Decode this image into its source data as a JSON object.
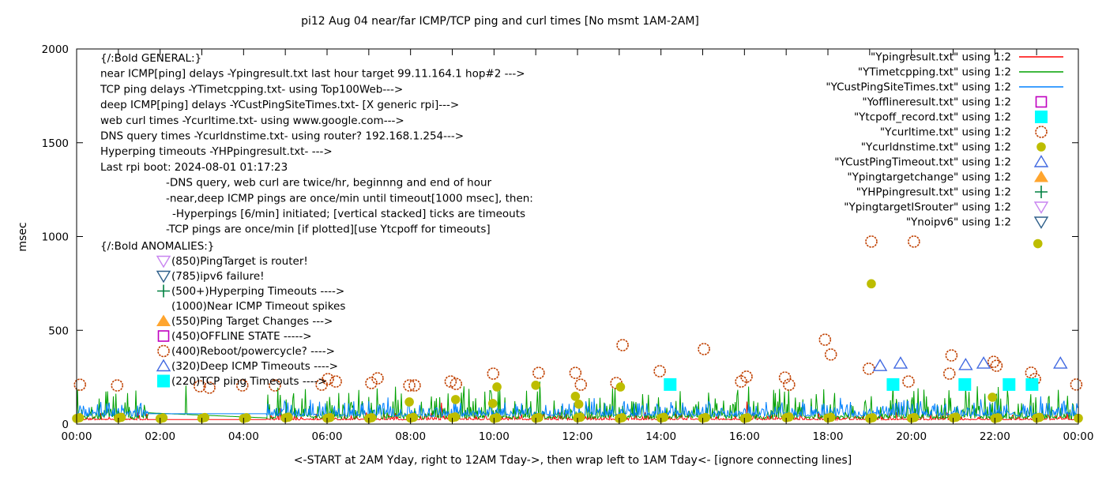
{
  "title": "pi12 Aug 04  near/far ICMP/TCP ping and curl times [No msmt 1AM-2AM]",
  "axes": {
    "ylabel": "msec",
    "y_ticks": [
      0,
      500,
      1000,
      1500,
      2000
    ],
    "y_range": [
      0,
      2000
    ],
    "x_tick_labels": [
      "00:00",
      "02:00",
      "04:00",
      "06:00",
      "08:00",
      "10:00",
      "12:00",
      "14:00",
      "16:00",
      "18:00",
      "20:00",
      "22:00",
      "00:00"
    ],
    "x_range_hours": [
      0,
      24
    ],
    "xlabel": "<-START at 2AM Yday, right to 12AM Tday->, then wrap left to 1AM Tday<- [ignore connecting lines]"
  },
  "legend": [
    {
      "label": "\"Ypingresult.txt\" using 1:2",
      "marker": "line",
      "color": "#ff0000"
    },
    {
      "label": "\"YTimetcpping.txt\" using 1:2",
      "marker": "line",
      "color": "#00a000"
    },
    {
      "label": "\"YCustPingSiteTimes.txt\" using 1:2",
      "marker": "line",
      "color": "#0080ff"
    },
    {
      "label": "\"Yofflineresult.txt\" using 1:2",
      "marker": "square-open",
      "color": "#c000c0"
    },
    {
      "label": "\"Ytcpoff_record.txt\" using 1:2",
      "marker": "square-filled",
      "color": "#00ffff"
    },
    {
      "label": "\"Ycurltime.txt\" using 1:2",
      "marker": "circle-open",
      "color": "#c04000"
    },
    {
      "label": "\"Ycurldnstime.txt\" using 1:2",
      "marker": "circle-filled",
      "color": "#bdbd00"
    },
    {
      "label": "\"YCustPingTimeout.txt\" using 1:2",
      "marker": "triangle-up-open",
      "color": "#4169e1"
    },
    {
      "label": "\"Ypingtargetchange\" using 1:2",
      "marker": "triangle-up-filled",
      "color": "#ffa52e"
    },
    {
      "label": "\"YHPpingresult.txt\" using 1:2",
      "marker": "plus",
      "color": "#008040"
    },
    {
      "label": "\"YpingtargetISrouter\" using 1:2",
      "marker": "triangle-down-open",
      "color": "#c884f0"
    },
    {
      "label": "\"Ynoipv6\" using 1:2",
      "marker": "triangle-down-open",
      "color": "#2e5f8a"
    }
  ],
  "notes": {
    "general": [
      {
        "indent": 0,
        "text": "{/:Bold GENERAL:}"
      },
      {
        "indent": 0,
        "text": "near ICMP[ping] delays -Ypingresult.txt last hour target 99.11.164.1 hop#2 --->"
      },
      {
        "indent": 0,
        "text": "TCP ping delays -YTimetcpping.txt- using Top100Web--->"
      },
      {
        "indent": 0,
        "text": "deep ICMP[ping] delays -YCustPingSiteTimes.txt- [X generic rpi]--->"
      },
      {
        "indent": 0,
        "text": "web curl times -Ycurltime.txt- using www.google.com--->"
      },
      {
        "indent": 0,
        "text": "DNS query times -Ycurldnstime.txt- using router? 192.168.1.254--->"
      },
      {
        "indent": 0,
        "text": "Hyperping timeouts -YHPpingresult.txt- --->"
      },
      {
        "indent": 0,
        "text": "Last rpi boot: 2024-08-01 01:17:23"
      },
      {
        "indent": 1,
        "text": "-DNS query, web curl are twice/hr, beginnng and end of hour"
      },
      {
        "indent": 1,
        "text": "-near,deep ICMP pings are once/min until timeout[1000 msec], then:"
      },
      {
        "indent": 2,
        "text": "-Hyperpings [6/min] initiated; [vertical stacked] ticks are timeouts"
      },
      {
        "indent": 1,
        "text": "-TCP pings are once/min [if plotted][use Ytcpoff for timeouts]"
      }
    ],
    "anomalies_header": "{/:Bold ANOMALIES:}",
    "anomalies": [
      {
        "marker": "triangle-down-open",
        "color": "#c884f0",
        "text": "(850)PingTarget is router!"
      },
      {
        "marker": "triangle-down-open",
        "color": "#2e5f8a",
        "text": "(785)ipv6 failure!"
      },
      {
        "marker": "plus",
        "color": "#008040",
        "text": "(500+)Hyperping Timeouts ---->"
      },
      {
        "marker": "none",
        "color": "#000000",
        "text": "(1000)Near ICMP Timeout spikes"
      },
      {
        "marker": "triangle-up-filled",
        "color": "#ffa52e",
        "text": "(550)Ping Target Changes --->"
      },
      {
        "marker": "square-open",
        "color": "#c000c0",
        "text": "(450)OFFLINE STATE ----->"
      },
      {
        "marker": "circle-open",
        "color": "#c04000",
        "text": "(400)Reboot/powercycle? ---->"
      },
      {
        "marker": "triangle-up-open",
        "color": "#4169e1",
        "text": "(320)Deep ICMP Timeouts ---->"
      },
      {
        "marker": "square-filled",
        "color": "#00ffff",
        "text": "(220)TCP ping Timeouts ---->"
      }
    ]
  },
  "chart_data": {
    "type": "line+scatter",
    "x_unit": "hours (00:00-24:00)",
    "y_unit": "msec",
    "no_measurement_gap_hours": [
      1.72,
      4.55
    ],
    "line_series": [
      {
        "name": "near ICMP ping (Ypingresult)",
        "color": "#ff0000",
        "seed": 11,
        "baseline": 22,
        "noise_amp": 38,
        "noise_pow": 7,
        "jitter": 5,
        "gap_values": [
          24,
          24
        ],
        "spikes": [
          [
            4.87,
            85
          ],
          [
            8.73,
            114
          ],
          [
            16.05,
            120
          ]
        ]
      },
      {
        "name": "TCP ping (YTimetcpping)",
        "color": "#00a000",
        "seed": 7,
        "baseline": 27,
        "noise_amp": 165,
        "noise_pow": 5,
        "jitter": 14,
        "gap_values": [
          60,
          33
        ],
        "spikes": [
          [
            0.88,
            148
          ],
          [
            2.62,
            206
          ],
          [
            9.39,
            188
          ],
          [
            11.09,
            227
          ],
          [
            13.55,
            160
          ],
          [
            16.1,
            200
          ],
          [
            19.56,
            206
          ],
          [
            21.3,
            198
          ],
          [
            22.08,
            198
          ],
          [
            23.3,
            150
          ]
        ]
      },
      {
        "name": "deep ICMP ping (YCustPingSiteTimes)",
        "color": "#0080ff",
        "seed": 5,
        "baseline": 40,
        "noise_amp": 78,
        "noise_pow": 3.2,
        "jitter": 10,
        "gap_values": [
          55,
          55
        ],
        "spikes": [
          [
            5.6,
            130
          ],
          [
            7.45,
            142
          ],
          [
            12.4,
            138
          ],
          [
            18.3,
            140
          ],
          [
            21.65,
            132
          ],
          [
            23.1,
            148
          ]
        ]
      }
    ],
    "scatter_series": [
      {
        "name": "web curl times (Ycurltime)",
        "marker": "circle-open",
        "color": "#c04000",
        "points": [
          [
            0.08,
            210
          ],
          [
            0.97,
            206
          ],
          [
            2.95,
            202
          ],
          [
            3.18,
            194
          ],
          [
            3.97,
            206
          ],
          [
            4.75,
            206
          ],
          [
            5.87,
            210
          ],
          [
            6.02,
            240
          ],
          [
            6.21,
            227
          ],
          [
            7.06,
            219
          ],
          [
            7.21,
            244
          ],
          [
            7.97,
            206
          ],
          [
            8.1,
            206
          ],
          [
            8.96,
            227
          ],
          [
            9.09,
            214
          ],
          [
            9.98,
            269
          ],
          [
            11.07,
            273
          ],
          [
            11.95,
            273
          ],
          [
            12.08,
            210
          ],
          [
            12.93,
            219
          ],
          [
            13.08,
            421
          ],
          [
            13.97,
            282
          ],
          [
            15.03,
            400
          ],
          [
            15.92,
            227
          ],
          [
            16.05,
            253
          ],
          [
            16.97,
            248
          ],
          [
            17.07,
            210
          ],
          [
            17.93,
            450
          ],
          [
            18.07,
            371
          ],
          [
            18.98,
            295
          ],
          [
            19.04,
            973
          ],
          [
            19.93,
            227
          ],
          [
            20.06,
            973
          ],
          [
            20.91,
            269
          ],
          [
            20.96,
            366
          ],
          [
            21.97,
            332
          ],
          [
            22.04,
            311
          ],
          [
            22.87,
            274
          ],
          [
            22.96,
            240
          ],
          [
            23.95,
            211
          ]
        ]
      },
      {
        "name": "DNS query times elevated (Ycurldnstime)",
        "marker": "circle-filled",
        "color": "#bdbd00",
        "points": [
          [
            7.97,
            118
          ],
          [
            9.08,
            131
          ],
          [
            9.97,
            110
          ],
          [
            10.07,
            198
          ],
          [
            11.0,
            207
          ],
          [
            11.95,
            148
          ],
          [
            12.03,
            106
          ],
          [
            13.03,
            198
          ],
          [
            19.04,
            748
          ],
          [
            21.94,
            143
          ],
          [
            23.03,
            962
          ]
        ]
      },
      {
        "name": "TCP ping timeouts (Ytcpoff_record)",
        "marker": "square-filled",
        "color": "#00ffff",
        "points": [
          [
            14.22,
            211
          ],
          [
            19.56,
            211
          ],
          [
            21.28,
            211
          ],
          [
            22.34,
            211
          ],
          [
            22.89,
            211
          ]
        ]
      },
      {
        "name": "deep ICMP timeouts (YCustPingTimeout)",
        "marker": "triangle-up-open",
        "color": "#4169e1",
        "points": [
          [
            19.25,
            311
          ],
          [
            19.74,
            324
          ],
          [
            21.3,
            316
          ],
          [
            21.73,
            324
          ],
          [
            23.57,
            324
          ]
        ]
      }
    ],
    "dns_baseline_pairs": [
      [
        0,
        30
      ],
      [
        1,
        32
      ],
      [
        2,
        29
      ],
      [
        3,
        31
      ],
      [
        4,
        30
      ],
      [
        5,
        33
      ],
      [
        6,
        31
      ],
      [
        7,
        30
      ],
      [
        8,
        32
      ],
      [
        9,
        34
      ],
      [
        10,
        30
      ],
      [
        11,
        31
      ],
      [
        12,
        33
      ],
      [
        13,
        30
      ],
      [
        14,
        32
      ],
      [
        15,
        31
      ],
      [
        16,
        30
      ],
      [
        17,
        34
      ],
      [
        18,
        32
      ],
      [
        19,
        30
      ],
      [
        20,
        31
      ],
      [
        21,
        33
      ],
      [
        22,
        30
      ],
      [
        23,
        32
      ],
      [
        24,
        31
      ]
    ]
  }
}
